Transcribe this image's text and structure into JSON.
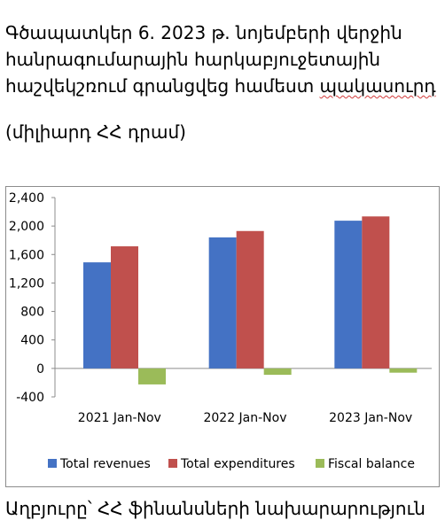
{
  "title": {
    "line1": "Գծապատկեր 6.  2023 թ. նոյեմբերի վերջին",
    "line2": "հանրագումարային հարկաբյուջետային",
    "line3_a": "հաշվեկշռում գրանցվեց համեստ ",
    "line3_b": "պակասուրդ"
  },
  "units": "(միլիարդ ՀՀ դրամ)",
  "source": "Աղբյուրը՝ ՀՀ ֆինանսների նախարարություն",
  "chart_data": {
    "type": "bar",
    "categories": [
      "2021 Jan-Nov",
      "2022 Jan-Nov",
      "2023 Jan-Nov"
    ],
    "series": [
      {
        "name": "Total revenues",
        "values": [
          1490,
          1840,
          2075
        ],
        "color": "#4472C4"
      },
      {
        "name": "Total expenditures",
        "values": [
          1715,
          1930,
          2135
        ],
        "color": "#C0504D"
      },
      {
        "name": "Fiscal balance",
        "values": [
          -225,
          -90,
          -60
        ],
        "color": "#9BBB59"
      }
    ],
    "ylim": [
      -400,
      2400
    ],
    "yticks": [
      "2,400",
      "2,000",
      "1,600",
      "1,200",
      "800",
      "400",
      "0",
      "-400"
    ],
    "ytick_values": [
      2400,
      2000,
      1600,
      1200,
      800,
      400,
      0,
      -400
    ],
    "legend": "bottom",
    "grid": false
  }
}
